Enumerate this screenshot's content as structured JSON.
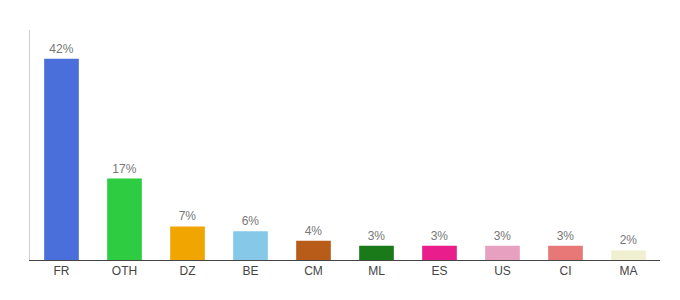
{
  "chart_data": {
    "type": "bar",
    "categories": [
      "FR",
      "OTH",
      "DZ",
      "BE",
      "CM",
      "ML",
      "ES",
      "US",
      "CI",
      "MA"
    ],
    "values": [
      42,
      17,
      7,
      6,
      4,
      3,
      3,
      3,
      3,
      2
    ],
    "value_labels": [
      "42%",
      "17%",
      "7%",
      "6%",
      "4%",
      "3%",
      "3%",
      "3%",
      "3%",
      "2%"
    ],
    "colors": [
      "#4a6fdb",
      "#2ecc40",
      "#f0a500",
      "#85c8e8",
      "#b85c1a",
      "#1a7a1a",
      "#e91e8c",
      "#e8a0c0",
      "#e87878",
      "#f0f0d0"
    ],
    "ylim": [
      0,
      48
    ],
    "grid": false,
    "data_labels": true,
    "tick_labels": "x"
  }
}
